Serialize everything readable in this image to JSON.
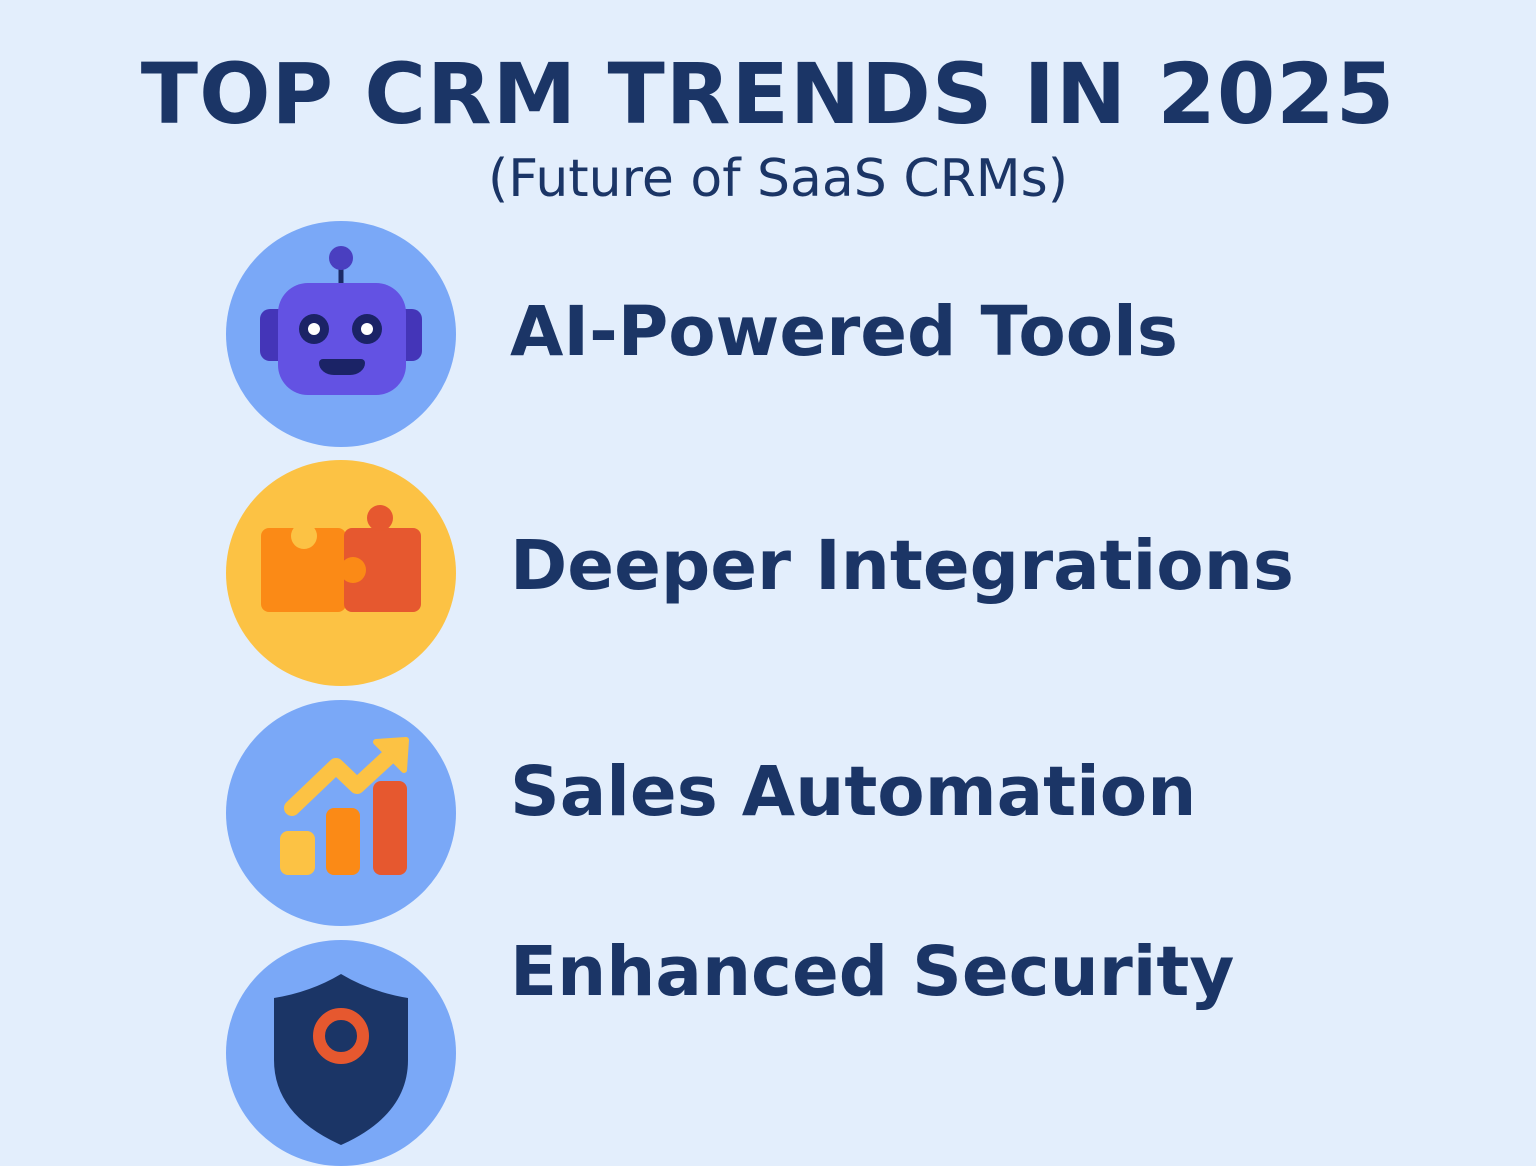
{
  "header": {
    "title": "TOP CRM TRENDS IN 2025",
    "subtitle": "(Future of SaaS CRMs)"
  },
  "trends": [
    {
      "label": "AI-Powered Tools",
      "icon": "robot-icon",
      "circle_color": "#7aa8f7"
    },
    {
      "label": "Deeper Integrations",
      "icon": "puzzle-icon",
      "circle_color": "#fcc244"
    },
    {
      "label": "Sales Automation",
      "icon": "growth-chart-icon",
      "circle_color": "#7aa8f7"
    },
    {
      "label": "Enhanced Security",
      "icon": "shield-lock-icon",
      "circle_color": "#7aa8f7"
    }
  ],
  "colors": {
    "background": "#e3eefc",
    "text": "#1b3566"
  }
}
